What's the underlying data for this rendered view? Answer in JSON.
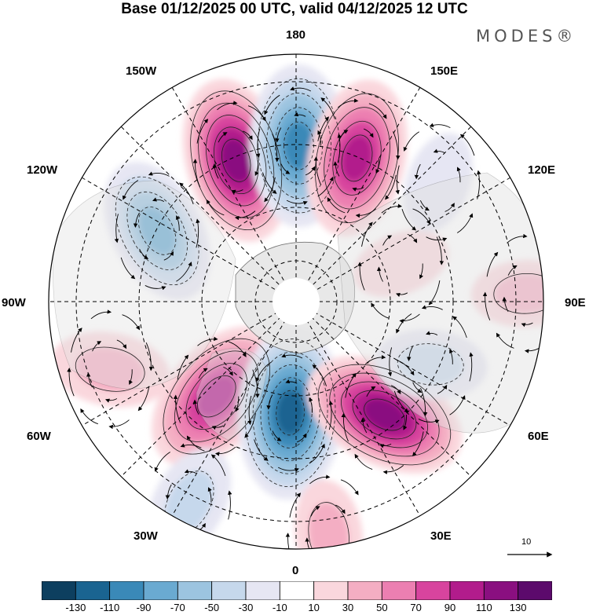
{
  "title": "Base 01/12/2025 00 UTC, valid 04/12/2025 12 UTC",
  "brand": "MODES®",
  "longitude_labels": {
    "top": "180",
    "top_left": "150W",
    "top_right": "150E",
    "upper_left": "120W",
    "upper_right": "120E",
    "left": "90W",
    "right": "90E",
    "lower_left": "60W",
    "lower_right": "60E",
    "bottom_left": "30W",
    "bottom_right": "30E",
    "bottom": "0"
  },
  "vector_scale": {
    "label": "10"
  },
  "colorbar": {
    "colors": [
      "#0d3f5f",
      "#1a6491",
      "#3a89b8",
      "#6aaad1",
      "#9cc4e0",
      "#c6d8ec",
      "#e6e6f3",
      "#ffffff",
      "#fad7dd",
      "#f4aec3",
      "#ec7fb1",
      "#d8449e",
      "#b21c8c",
      "#8a0f80",
      "#5c0a6c"
    ],
    "labels": [
      "-130",
      "-110",
      "-90",
      "-70",
      "-50",
      "-30",
      "-10",
      "10",
      "30",
      "50",
      "70",
      "90",
      "110",
      "130"
    ]
  },
  "anomaly_centers": [
    {
      "name": "a1",
      "lon": -157,
      "colat": 0.62,
      "val": 120,
      "rot": 8
    },
    {
      "name": "a2",
      "lon": 179,
      "colat": 0.63,
      "val": -115,
      "rot": -2
    },
    {
      "name": "a3",
      "lon": 157,
      "colat": 0.63,
      "val": 110,
      "rot": -10
    },
    {
      "name": "a4",
      "lon": -117,
      "colat": 0.63,
      "val": -95,
      "rot": 35
    },
    {
      "name": "a5",
      "lon": -40,
      "colat": 0.5,
      "val": 115,
      "rot": 0
    },
    {
      "name": "a6",
      "lon": -3,
      "colat": 0.45,
      "val": -130,
      "rot": 0
    },
    {
      "name": "a7",
      "lon": 38,
      "colat": 0.58,
      "val": 120,
      "rot": -25
    },
    {
      "name": "a8",
      "lon": -70,
      "colat": 0.8,
      "val": 55,
      "rot": 30
    },
    {
      "name": "a9",
      "lon": -28,
      "colat": 0.92,
      "val": -50,
      "rot": 0
    },
    {
      "name": "a10",
      "lon": 8,
      "colat": 0.95,
      "val": 40,
      "rot": 0
    },
    {
      "name": "a11",
      "lon": 65,
      "colat": 0.6,
      "val": -45,
      "rot": -20
    },
    {
      "name": "a12",
      "lon": 92,
      "colat": 0.93,
      "val": 40,
      "rot": 0
    },
    {
      "name": "a13",
      "lon": 110,
      "colat": 0.45,
      "val": 25,
      "rot": 0
    },
    {
      "name": "a14",
      "lon": 130,
      "colat": 0.75,
      "val": -30,
      "rot": -30
    }
  ]
}
